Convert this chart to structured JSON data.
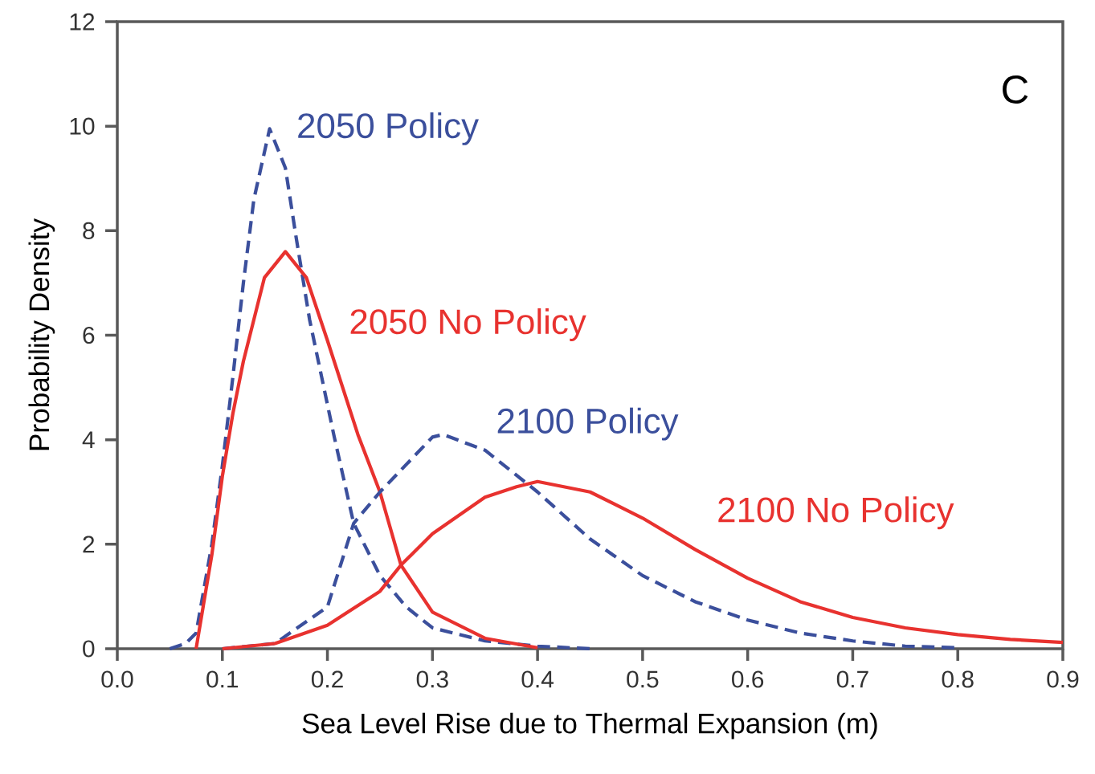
{
  "chart_data": {
    "type": "line",
    "xlabel": "Sea Level Rise due to Thermal Expansion (m)",
    "ylabel": "Probability Density",
    "annotations": [
      "C"
    ],
    "xlim": [
      0,
      0.9
    ],
    "ylim": [
      0,
      12
    ],
    "xticks": [
      {
        "value": 0,
        "label": "0.0"
      },
      0.1,
      0.2,
      0.3,
      0.4,
      0.5,
      0.6,
      0.7,
      0.8,
      0.9
    ],
    "yticks": [
      0,
      2,
      4,
      6,
      8,
      10,
      12
    ],
    "legend": false,
    "grid": false,
    "marker": "none",
    "series": [
      {
        "name": "2050 Policy",
        "color": "#3b4f9c",
        "line_style": "dashed",
        "x": [
          0.05,
          0.065,
          0.075,
          0.09,
          0.1,
          0.11,
          0.12,
          0.13,
          0.145,
          0.16,
          0.17,
          0.183,
          0.206,
          0.225,
          0.25,
          0.275,
          0.3,
          0.35,
          0.4,
          0.45
        ],
        "values": [
          0,
          0.1,
          0.3,
          2.0,
          3.5,
          5.2,
          7.0,
          8.6,
          9.95,
          9.2,
          7.9,
          6.3,
          4.1,
          2.4,
          1.4,
          0.8,
          0.4,
          0.15,
          0.05,
          0
        ]
      },
      {
        "name": "2050 No Policy",
        "color": "#e8322f",
        "line_style": "solid",
        "x": [
          0.075,
          0.09,
          0.1,
          0.11,
          0.12,
          0.14,
          0.16,
          0.18,
          0.2,
          0.229,
          0.25,
          0.27,
          0.3,
          0.35,
          0.4
        ],
        "values": [
          0,
          1.8,
          3.3,
          4.5,
          5.5,
          7.1,
          7.6,
          7.1,
          5.9,
          4.1,
          3.0,
          1.6,
          0.7,
          0.2,
          0.02
        ]
      },
      {
        "name": "2100 Policy",
        "color": "#3b4f9c",
        "line_style": "dashed",
        "x": [
          0.1,
          0.15,
          0.2,
          0.225,
          0.25,
          0.3,
          0.31,
          0.35,
          0.4,
          0.45,
          0.5,
          0.55,
          0.6,
          0.65,
          0.7,
          0.75,
          0.8
        ],
        "values": [
          0,
          0.1,
          0.8,
          2.4,
          3.0,
          4.05,
          4.1,
          3.8,
          3.0,
          2.1,
          1.4,
          0.9,
          0.55,
          0.3,
          0.15,
          0.05,
          0.02
        ]
      },
      {
        "name": "2100 No Policy",
        "color": "#e8322f",
        "line_style": "solid",
        "x": [
          0.1,
          0.15,
          0.2,
          0.25,
          0.27,
          0.3,
          0.35,
          0.38,
          0.4,
          0.45,
          0.5,
          0.55,
          0.6,
          0.65,
          0.7,
          0.75,
          0.8,
          0.85,
          0.9
        ],
        "values": [
          0,
          0.1,
          0.45,
          1.1,
          1.6,
          2.2,
          2.9,
          3.1,
          3.2,
          3.0,
          2.5,
          1.9,
          1.35,
          0.9,
          0.6,
          0.4,
          0.27,
          0.18,
          0.12
        ]
      }
    ]
  }
}
